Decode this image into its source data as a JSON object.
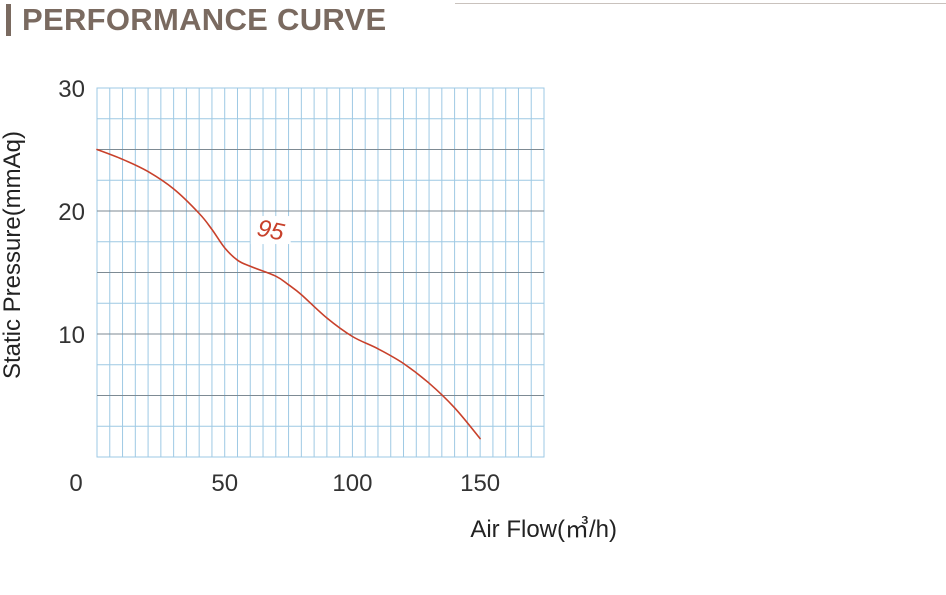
{
  "header": {
    "title": "PERFORMANCE CURVE"
  },
  "colors": {
    "header_text": "#7a6a60",
    "grid_minor": "#9ec9e4",
    "grid_major": "#7d8a93",
    "curve": "#c8412b"
  },
  "chart_data": {
    "type": "line",
    "title": "",
    "xlabel": "Air Flow(㎥/h)",
    "ylabel": "Static Pressure(mmAq)",
    "xlim": [
      0,
      175
    ],
    "ylim": [
      0,
      30
    ],
    "xticks": [
      0,
      50,
      100,
      150
    ],
    "yticks": [
      10,
      20,
      30
    ],
    "grid": true,
    "series": [
      {
        "name": "95",
        "x": [
          0,
          10,
          20,
          30,
          40,
          45,
          50,
          55,
          60,
          70,
          75,
          80,
          90,
          100,
          110,
          120,
          130,
          140,
          150
        ],
        "y": [
          25.0,
          24.2,
          23.2,
          21.8,
          19.8,
          18.5,
          17.0,
          16.0,
          15.5,
          14.7,
          14.0,
          13.2,
          11.3,
          9.8,
          8.8,
          7.6,
          6.0,
          4.0,
          1.5
        ]
      }
    ]
  }
}
